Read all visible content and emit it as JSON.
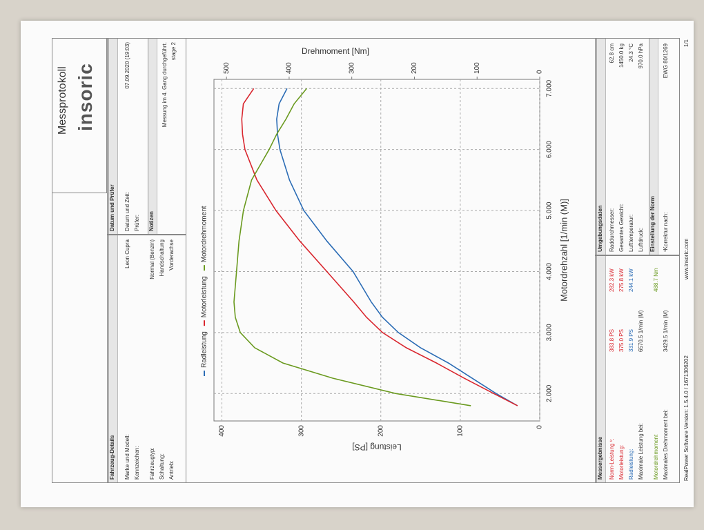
{
  "header": {
    "title": "Messprotokoll",
    "logo": "insoric"
  },
  "vehicle": {
    "title": "Fahrzeug-Details",
    "rows": [
      {
        "label": "Marke und Modell:",
        "value": "Leon Cupra"
      },
      {
        "label": "Kennzeichen:"
      },
      {
        "label": "Fahrzeugtyp:",
        "value": "Normal (Benzin)"
      },
      {
        "label": "Schaltung:",
        "value": "Handschaltung"
      },
      {
        "label": "Antrieb:",
        "value": "Vorderachse"
      }
    ]
  },
  "date": {
    "title": "Datum und Prüfer",
    "rows": [
      {
        "label": "Datum und Zeit:",
        "value": "07.09.2020 (19:03)"
      },
      {
        "label": "Prüfer:"
      }
    ]
  },
  "notes": {
    "title": "Notizen",
    "lines": [
      "Messung im 4. Gang durchgeführt.",
      "stage 2"
    ]
  },
  "chart_data": {
    "type": "line",
    "x_label": "Motordrehzahl [1/min (M)]",
    "y_label": "Leistung [PS]",
    "y2_label": "Drehmoment [Nm]",
    "x": [
      1800,
      2000,
      2250,
      2500,
      2750,
      3000,
      3250,
      3500,
      4000,
      4500,
      5000,
      5500,
      6000,
      6250,
      6500,
      6750,
      7000
    ],
    "series": [
      {
        "name": "Radleistung",
        "color": "#2b6cb5",
        "values": [
          28,
          55,
          85,
          115,
          150,
          178,
          198,
          212,
          235,
          268,
          297,
          315,
          327,
          330,
          331,
          328,
          318
        ]
      },
      {
        "name": "Motorleistung",
        "color": "#d9262e",
        "values": [
          28,
          58,
          95,
          130,
          168,
          198,
          218,
          234,
          268,
          302,
          332,
          356,
          371,
          374,
          375,
          373,
          360
        ]
      },
      {
        "name": "Motordrehmoment",
        "color": "#6a9a1f",
        "axis": "y2",
        "values": [
          110,
          230,
          330,
          410,
          455,
          478,
          486,
          488,
          484,
          480,
          473,
          460,
          432,
          420,
          405,
          392,
          372
        ]
      }
    ],
    "xlim": [
      1550,
      7150
    ],
    "xticks": [
      {
        "value": 2000,
        "label": "2.000"
      },
      {
        "value": 3000,
        "label": "3.000"
      },
      {
        "value": 4000,
        "label": "4.000"
      },
      {
        "value": 5000,
        "label": "5.000"
      },
      {
        "value": 6000,
        "label": "6.000"
      },
      {
        "value": 7000,
        "label": "7.000"
      }
    ],
    "ylim": [
      0,
      410
    ],
    "yticks": [
      0,
      100,
      200,
      300,
      400
    ],
    "y2lim": [
      0,
      520
    ],
    "y2ticks": [
      0,
      100,
      200,
      300,
      400,
      500
    ],
    "grid": true,
    "legend": "top"
  },
  "results": {
    "title": "Messergebnisse",
    "rows": [
      {
        "label": "Norm-Leistung ¹:",
        "ps": "383.8 PS",
        "kw": "282.3 kW",
        "color": "#d9262e"
      },
      {
        "label": "Motorleistung:",
        "ps": "375.0 PS",
        "kw": "275.8 kW",
        "color": "#d9262e"
      },
      {
        "label": "Radleistung:",
        "ps": "331.9 PS",
        "kw": "244.1 kW",
        "color": "#2b6cb5"
      },
      {
        "label": "Maximale Leistung bei:",
        "ps": "6570.5 1/min (M)"
      },
      {
        "label": "Motordrehmoment",
        "kw": "488.7 Nm",
        "color": "#6a9a1f"
      },
      {
        "label": "Maximales Drehmoment bei:",
        "ps": "3429.5 1/min (M)"
      }
    ]
  },
  "ambient": {
    "title": "Umgebungsdaten",
    "rows": [
      {
        "label": "Raddurchmesser:",
        "value": "62.8 cm"
      },
      {
        "label": "Gesamtes Gewicht:",
        "value": "1450.0 kg"
      },
      {
        "label": "Lufttemperatur:",
        "value": "24.3 °C"
      },
      {
        "label": "Luftdruck:",
        "value": "970.0 hPa"
      }
    ]
  },
  "norm": {
    "title": "Einstellung der Norm",
    "rows": [
      {
        "label": "¹Korrektur nach:",
        "value": "EWG 80/1269"
      }
    ]
  },
  "footer": {
    "software": "RealPower Software Version: 1.5.4.0 / 1671306202",
    "website": "www.insoric.com",
    "page": "1/1"
  }
}
